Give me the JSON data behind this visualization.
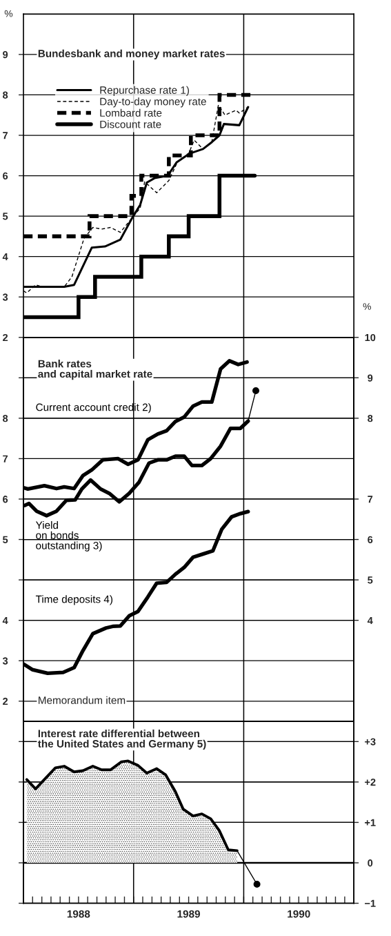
{
  "chart_data": [
    {
      "type": "line",
      "title": "Bundesbank and money market rates",
      "ylabel": "%",
      "xlim": [
        1988,
        1991
      ],
      "ylim": [
        2,
        10
      ],
      "yticks": [
        2,
        3,
        4,
        5,
        6,
        7,
        8,
        9
      ],
      "grid": "y",
      "legend": "top left",
      "tick_labels": "y",
      "ref_lines": [
        {
          "axis": "x",
          "value": 1989,
          "color": "#000000"
        },
        {
          "axis": "x",
          "value": 1990,
          "color": "#000000"
        }
      ],
      "series": [
        {
          "name": "Repurchase rate 1)",
          "color": "#000000",
          "line_style": "solid",
          "x": [
            1988.0,
            1988.37,
            1988.46,
            1988.62,
            1988.74,
            1988.88,
            1988.99,
            1989.06,
            1989.12,
            1989.19,
            1989.31,
            1989.39,
            1989.51,
            1989.63,
            1989.71,
            1989.78,
            1989.82,
            1989.96,
            1990.04
          ],
          "values": [
            3.25,
            3.25,
            3.3,
            4.22,
            4.25,
            4.42,
            4.97,
            5.28,
            5.83,
            5.94,
            6.0,
            6.33,
            6.55,
            6.66,
            6.83,
            7.0,
            7.28,
            7.25,
            7.7
          ]
        },
        {
          "name": "Day-to-day money rate",
          "color": "#000000",
          "line_style": "dashed",
          "x": [
            1988.0,
            1988.03,
            1988.11,
            1988.17,
            1988.37,
            1988.44,
            1988.55,
            1988.63,
            1988.71,
            1988.79,
            1988.88,
            1988.99,
            1989.06,
            1989.1,
            1989.21,
            1989.32,
            1989.4,
            1989.5,
            1989.55,
            1989.63,
            1989.71,
            1989.77,
            1989.83,
            1989.93,
            1989.96,
            1990.04
          ],
          "values": [
            3.15,
            3.1,
            3.3,
            3.25,
            3.25,
            3.5,
            4.45,
            4.72,
            4.68,
            4.72,
            4.6,
            4.97,
            5.2,
            5.85,
            5.58,
            5.88,
            6.35,
            6.55,
            6.88,
            6.66,
            6.83,
            7.75,
            7.5,
            7.62,
            7.55,
            7.7
          ]
        },
        {
          "name": "Lombard rate",
          "type": "step",
          "color": "#000000",
          "line_style": "dashed",
          "x": [
            1988.0,
            1988.6,
            1988.98,
            1989.07,
            1989.32,
            1989.52,
            1989.78,
            1990.1
          ],
          "values": [
            4.5,
            5,
            5.5,
            6,
            6.5,
            7,
            8,
            8
          ]
        },
        {
          "name": "Discount rate",
          "type": "step",
          "color": "#000000",
          "line_style": "solid",
          "x": [
            1988.0,
            1988.5,
            1988.65,
            1989.07,
            1989.32,
            1989.5,
            1989.78,
            1990.1
          ],
          "values": [
            2.5,
            3,
            3.5,
            4,
            4.5,
            5,
            6,
            6
          ]
        }
      ]
    },
    {
      "type": "line",
      "title": "Bank rates\nand capital market rate",
      "y2label": "%",
      "xlim": [
        1988,
        1991
      ],
      "ylim": [
        0.5,
        10
      ],
      "yticks": [
        {
          "value": 4,
          "label": null
        },
        5,
        6,
        7,
        8,
        {
          "value": 9,
          "label": null
        }
      ],
      "y2lim": [
        0.5,
        10
      ],
      "y2ticks": [
        8,
        9,
        10
      ],
      "grid": "y",
      "tick_labels": "y",
      "ref_lines": [
        {
          "axis": "x",
          "value": 1989,
          "color": "#000000"
        },
        {
          "axis": "x",
          "value": 1990,
          "color": "#000000"
        }
      ],
      "series": [
        {
          "name": "Current account credit 2)",
          "axis": "y2",
          "color": "#000000",
          "x": [
            1988.0,
            1988.04,
            1988.19,
            1988.3,
            1988.37,
            1988.46,
            1988.54,
            1988.62,
            1988.72,
            1988.86,
            1988.95,
            1989.04,
            1989.13,
            1989.22,
            1989.3,
            1989.38,
            1989.46,
            1989.54,
            1989.62,
            1989.71,
            1989.79,
            1989.87,
            1989.95,
            1990.03
          ],
          "values": [
            6.28,
            6.25,
            6.33,
            6.26,
            6.3,
            6.26,
            6.58,
            6.72,
            6.97,
            7.0,
            6.86,
            6.97,
            7.47,
            7.61,
            7.69,
            7.92,
            8.03,
            8.3,
            8.4,
            8.4,
            9.22,
            9.42,
            9.33,
            9.39
          ]
        },
        {
          "name": "Yield\non bonds\noutstanding 3)",
          "axis": "y",
          "color": "#000000",
          "x": [
            1988.01,
            1988.05,
            1988.12,
            1988.21,
            1988.3,
            1988.39,
            1988.47,
            1988.53,
            1988.61,
            1988.7,
            1988.78,
            1988.87,
            1988.96,
            1989.05,
            1989.14,
            1989.22,
            1989.3,
            1989.38,
            1989.46,
            1989.53,
            1989.62,
            1989.7,
            1989.79,
            1989.88,
            1989.97,
            1990.04
          ],
          "values": [
            5.84,
            5.89,
            5.7,
            5.59,
            5.7,
            5.97,
            5.98,
            6.25,
            6.47,
            6.25,
            6.14,
            5.93,
            6.14,
            6.42,
            6.89,
            6.97,
            6.97,
            7.06,
            7.06,
            6.83,
            6.83,
            7.0,
            7.31,
            7.75,
            7.75,
            7.93
          ]
        },
        {
          "axis": "y",
          "color": "#000000",
          "x": [
            1990.04,
            1990.11
          ],
          "values": [
            7.93,
            8.68
          ]
        },
        {
          "type": "scatter",
          "axis": "y",
          "color": "#000000",
          "marker": "circle",
          "x": [
            1990.11
          ],
          "values": [
            8.68
          ]
        }
      ]
    },
    {
      "type": "line",
      "xlim": [
        1988,
        1991
      ],
      "ylim": [
        1.5,
        11
      ],
      "yticks": [
        2,
        3,
        4
      ],
      "y2lim": [
        1.5,
        11
      ],
      "y2ticks": [
        4,
        5,
        6,
        7
      ],
      "grid": "y",
      "tick_labels": "y",
      "series": [
        {
          "name": "Time deposits 4)",
          "axis": "y",
          "color": "#000000",
          "x": [
            1988.0,
            1988.08,
            1988.22,
            1988.36,
            1988.46,
            1988.54,
            1988.63,
            1988.75,
            1988.81,
            1988.88,
            1988.96,
            1989.04,
            1989.13,
            1989.21,
            1989.3,
            1989.38,
            1989.46,
            1989.54,
            1989.63,
            1989.72,
            1989.8,
            1989.89,
            1989.97,
            1990.04
          ],
          "values": [
            2.92,
            2.78,
            2.69,
            2.71,
            2.83,
            3.25,
            3.67,
            3.81,
            3.85,
            3.86,
            4.11,
            4.22,
            4.58,
            4.92,
            4.94,
            5.14,
            5.31,
            5.56,
            5.64,
            5.72,
            6.25,
            6.56,
            6.64,
            6.69
          ]
        }
      ]
    },
    {
      "type": "area",
      "title": "Interest rate differential between\nthe United States and Germany 5)",
      "subtitle": "Memorandum item",
      "xlim": [
        1988,
        1991
      ],
      "y2lim": [
        -1,
        3.5
      ],
      "y2ticks": [
        {
          "value": 3,
          "label": "+3"
        },
        {
          "value": 2,
          "label": "+2"
        },
        {
          "value": 1,
          "label": "+1"
        },
        0,
        {
          "value": -1,
          "label": "−1"
        }
      ],
      "grid": "y",
      "xticks": [
        {
          "value": 1988.083,
          "label": null
        },
        {
          "value": 1988.167,
          "label": null
        },
        {
          "value": 1988.25,
          "label": null
        },
        {
          "value": 1988.333,
          "label": null
        },
        {
          "value": 1988.417,
          "label": null
        },
        {
          "value": 1988.5,
          "label": "1988"
        },
        {
          "value": 1988.583,
          "label": null
        },
        {
          "value": 1988.667,
          "label": null
        },
        {
          "value": 1988.75,
          "label": null
        },
        {
          "value": 1988.833,
          "label": null
        },
        {
          "value": 1988.917,
          "label": null
        },
        {
          "value": 1989,
          "label": null
        },
        {
          "value": 1989.083,
          "label": null
        },
        {
          "value": 1989.167,
          "label": null
        },
        {
          "value": 1989.25,
          "label": null
        },
        {
          "value": 1989.333,
          "label": null
        },
        {
          "value": 1989.417,
          "label": null
        },
        {
          "value": 1989.5,
          "label": "1989"
        },
        {
          "value": 1989.583,
          "label": null
        },
        {
          "value": 1989.667,
          "label": null
        },
        {
          "value": 1989.75,
          "label": null
        },
        {
          "value": 1989.833,
          "label": null
        },
        {
          "value": 1989.917,
          "label": null
        },
        {
          "value": 1990,
          "label": null
        },
        {
          "value": 1990.083,
          "label": null
        },
        {
          "value": 1990.167,
          "label": null
        },
        {
          "value": 1990.25,
          "label": null
        },
        {
          "value": 1990.333,
          "label": null
        },
        {
          "value": 1990.417,
          "label": null
        },
        {
          "value": 1990.5,
          "label": "1990"
        },
        {
          "value": 1990.583,
          "label": null
        },
        {
          "value": 1990.667,
          "label": null
        },
        {
          "value": 1990.75,
          "label": null
        },
        {
          "value": 1990.833,
          "label": null
        },
        {
          "value": 1990.917,
          "label": null
        }
      ],
      "ref_lines": [
        {
          "axis": "x",
          "value": 1989,
          "color": "#000000"
        },
        {
          "axis": "x",
          "value": 1990,
          "color": "#000000"
        },
        {
          "axis": "y2",
          "value": 0,
          "color": "#000000"
        }
      ],
      "series": [
        {
          "axis": "y2",
          "color": "#000000",
          "x": [
            1988.03,
            1988.11,
            1988.21,
            1988.29,
            1988.37,
            1988.46,
            1988.54,
            1988.63,
            1988.71,
            1988.79,
            1988.89,
            1988.95,
            1989.04,
            1989.12,
            1989.21,
            1989.29,
            1989.38,
            1989.45,
            1989.54,
            1989.62,
            1989.7,
            1989.78,
            1989.86,
            1989.94
          ],
          "values": [
            2.06,
            1.83,
            2.12,
            2.35,
            2.39,
            2.25,
            2.28,
            2.39,
            2.3,
            2.3,
            2.5,
            2.52,
            2.41,
            2.22,
            2.33,
            2.18,
            1.76,
            1.33,
            1.16,
            1.21,
            1.09,
            0.79,
            0.32,
            0.3
          ]
        },
        {
          "type": "line",
          "axis": "y2",
          "color": "#000000",
          "x": [
            1989.94,
            1990.12
          ],
          "values": [
            0.3,
            -0.53
          ]
        },
        {
          "type": "scatter",
          "axis": "y2",
          "color": "#000000",
          "marker": "circle",
          "x": [
            1990.12
          ],
          "values": [
            -0.53
          ]
        }
      ]
    }
  ]
}
